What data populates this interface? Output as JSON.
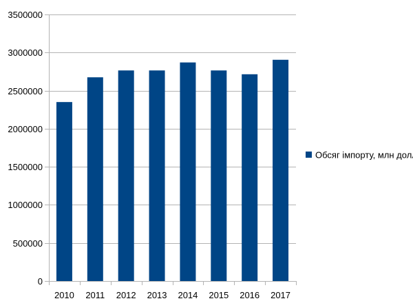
{
  "chart_data": {
    "type": "bar",
    "categories": [
      "2010",
      "2011",
      "2012",
      "2013",
      "2014",
      "2015",
      "2016",
      "2017"
    ],
    "series": [
      {
        "name": "Обсяг імпорту, млн долл",
        "color": "#004586",
        "values": [
          2350000,
          2675000,
          2765000,
          2765000,
          2870000,
          2765000,
          2715000,
          2905000
        ]
      }
    ],
    "ylim": [
      0,
      3500000
    ],
    "yticks": [
      "0",
      "500000",
      "1000000",
      "1500000",
      "2000000",
      "2500000",
      "3000000",
      "3500000"
    ],
    "grid": true,
    "legend_position": "right"
  }
}
